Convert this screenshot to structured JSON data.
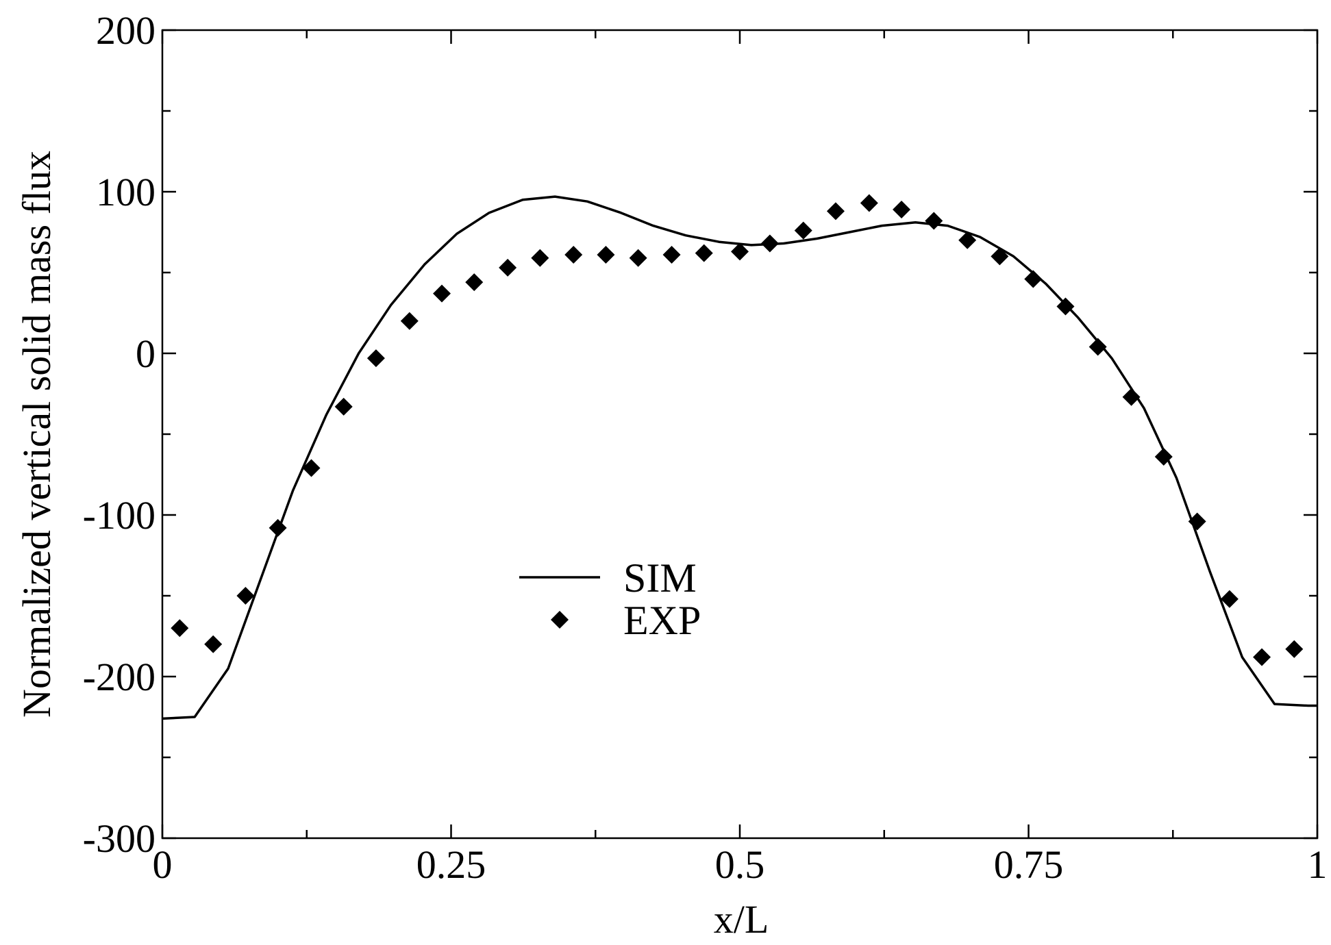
{
  "chart_data": {
    "type": "line",
    "xlabel": "x/L",
    "ylabel": "Normalized vertical solid mass flux",
    "xlim": [
      0,
      1
    ],
    "ylim": [
      -300,
      200
    ],
    "x_ticks": [
      0,
      0.25,
      0.5,
      0.75,
      1
    ],
    "x_tick_labels": [
      "0",
      "0.25",
      "0.5",
      "0.75",
      "1"
    ],
    "x_minor_ticks": [
      0.125,
      0.375,
      0.625,
      0.875
    ],
    "y_ticks": [
      -300,
      -200,
      -100,
      0,
      100,
      200
    ],
    "y_tick_labels": [
      "-300",
      "-200",
      "-100",
      "0",
      "100",
      "200"
    ],
    "y_minor_ticks": [
      -250,
      -150,
      -50,
      50,
      150
    ],
    "grid": false,
    "legend": "center-left",
    "series": [
      {
        "name": "SIM",
        "style": "line",
        "color": "#000000",
        "x": [
          0,
          0.028,
          0.057,
          0.085,
          0.113,
          0.142,
          0.17,
          0.198,
          0.227,
          0.255,
          0.283,
          0.312,
          0.34,
          0.368,
          0.397,
          0.425,
          0.453,
          0.482,
          0.51,
          0.538,
          0.567,
          0.595,
          0.623,
          0.652,
          0.68,
          0.708,
          0.737,
          0.765,
          0.793,
          0.822,
          0.85,
          0.878,
          0.907,
          0.935,
          0.963,
          0.992,
          1.0
        ],
        "y": [
          -226,
          -225,
          -195,
          -140,
          -85,
          -38,
          0,
          30,
          55,
          74,
          87,
          95,
          97,
          94,
          87,
          79,
          73,
          69,
          67,
          68,
          71,
          75,
          79,
          81,
          79,
          72,
          60,
          43,
          22,
          -3,
          -34,
          -77,
          -135,
          -188,
          -217,
          -218,
          -218
        ]
      },
      {
        "name": "EXP",
        "style": "marker",
        "marker": "diamond",
        "color": "#000000",
        "x": [
          0.015,
          0.044,
          0.072,
          0.1,
          0.129,
          0.157,
          0.185,
          0.214,
          0.242,
          0.27,
          0.299,
          0.327,
          0.356,
          0.384,
          0.412,
          0.441,
          0.469,
          0.5,
          0.526,
          0.555,
          0.583,
          0.612,
          0.64,
          0.668,
          0.697,
          0.725,
          0.754,
          0.782,
          0.81,
          0.839,
          0.867,
          0.896,
          0.924,
          0.952,
          0.98
        ],
        "y": [
          -170,
          -180,
          -150,
          -108,
          -71,
          -33,
          -3,
          20,
          37,
          44,
          53,
          59,
          61,
          61,
          59,
          61,
          62,
          63,
          68,
          76,
          88,
          93,
          89,
          82,
          70,
          60,
          46,
          29,
          4,
          -27,
          -64,
          -104,
          -152,
          -188,
          -183
        ]
      }
    ]
  }
}
